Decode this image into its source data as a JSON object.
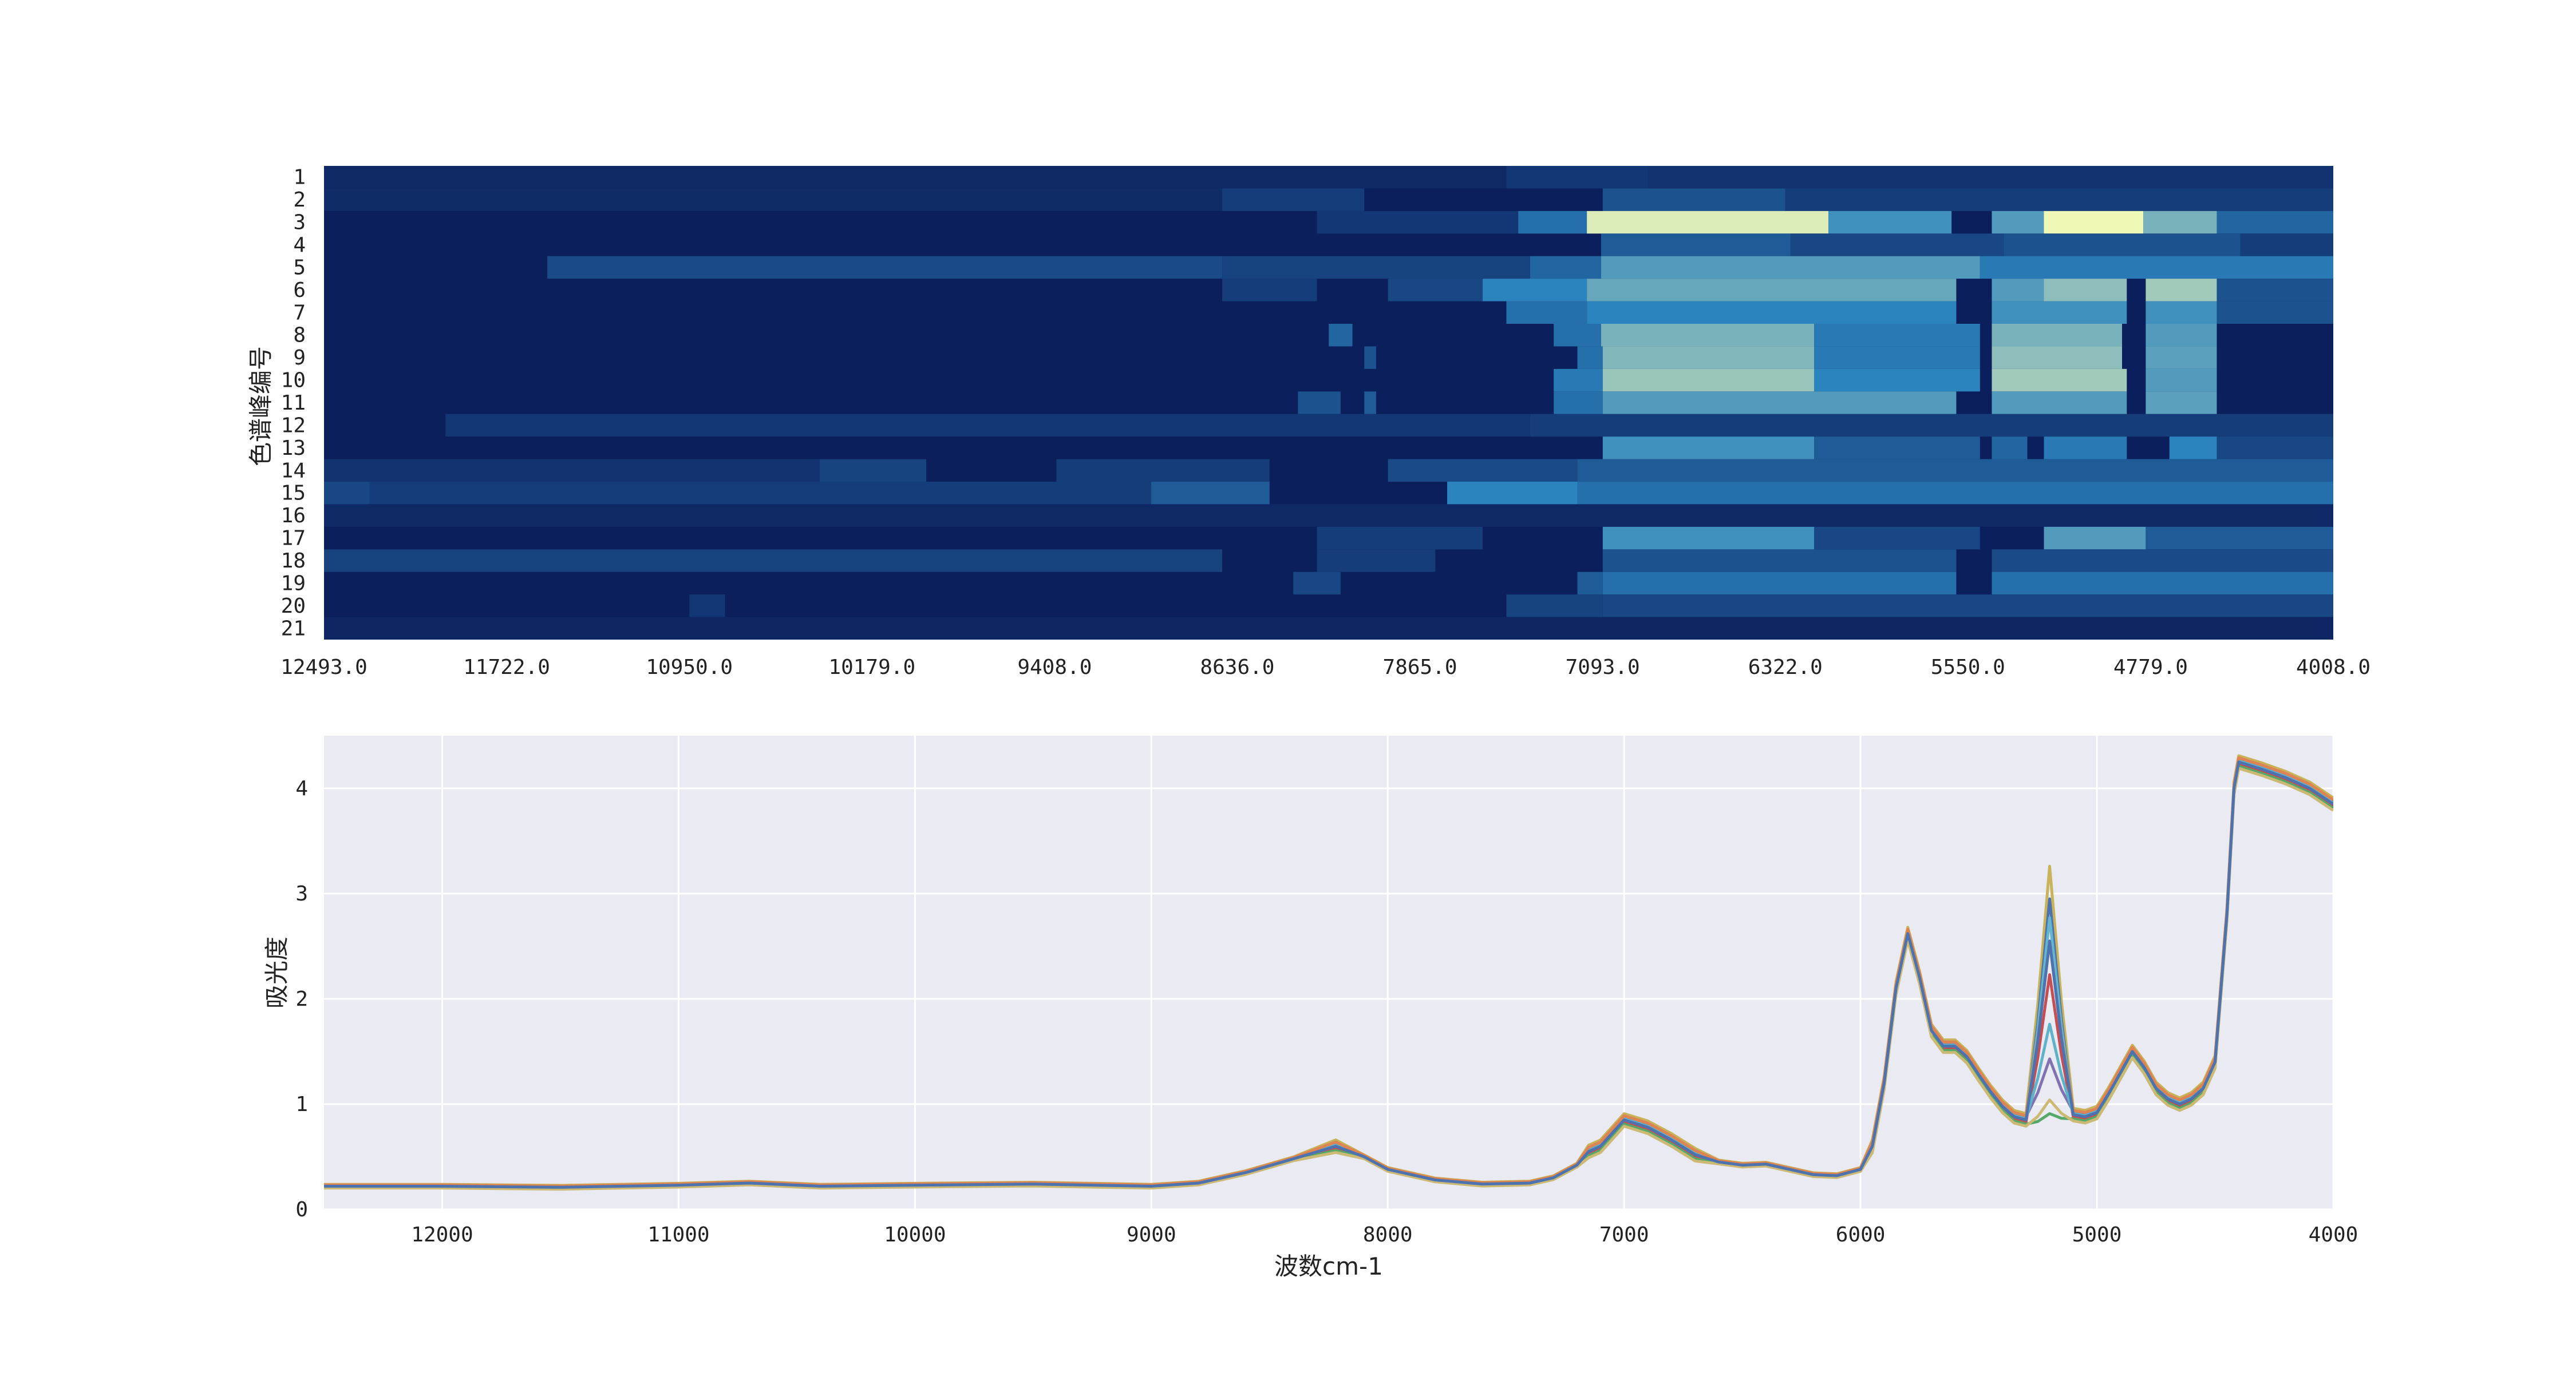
{
  "chart_data": [
    {
      "type": "heatmap",
      "title": "",
      "ylabel": "色谱峰编号",
      "xlabel": "",
      "rows": [
        "1",
        "2",
        "3",
        "4",
        "5",
        "6",
        "7",
        "8",
        "9",
        "10",
        "11",
        "12",
        "13",
        "14",
        "15",
        "16",
        "17",
        "18",
        "19",
        "20",
        "21"
      ],
      "x_tick_labels": [
        "12493.0",
        "11722.0",
        "10950.0",
        "10179.0",
        "9408.0",
        "8636.0",
        "7865.0",
        "7093.0",
        "6322.0",
        "5550.0",
        "4779.0",
        "4008.0"
      ],
      "x_range": [
        12493.0,
        4008.0
      ],
      "colormap": "YlGnBu",
      "colors": {
        "low": "#0b1f5c",
        "mid": "#2c84be",
        "high": "#f0f8b8"
      },
      "intensity_segments": [
        {
          "row": "1",
          "segments": [
            [
              12493,
              7500,
              0.05
            ],
            [
              7500,
              6900,
              0.12
            ],
            [
              6900,
              4008,
              0.1
            ]
          ]
        },
        {
          "row": "2",
          "segments": [
            [
              12493,
              8700,
              0.06
            ],
            [
              8700,
              8100,
              0.15
            ],
            [
              7093,
              6322,
              0.25
            ],
            [
              6322,
              4008,
              0.15
            ]
          ]
        },
        {
          "row": "3",
          "segments": [
            [
              8300,
              7450,
              0.12
            ],
            [
              7450,
              7160,
              0.4
            ],
            [
              7160,
              6140,
              0.95
            ],
            [
              6140,
              5620,
              0.55
            ],
            [
              5450,
              5230,
              0.6
            ],
            [
              5230,
              4810,
              1.0
            ],
            [
              4810,
              4500,
              0.7
            ],
            [
              4500,
              4008,
              0.35
            ]
          ]
        },
        {
          "row": "4",
          "segments": [
            [
              7100,
              6300,
              0.3
            ],
            [
              6300,
              5400,
              0.2
            ],
            [
              5400,
              4400,
              0.25
            ],
            [
              4400,
              4008,
              0.15
            ]
          ]
        },
        {
          "row": "5",
          "segments": [
            [
              11550,
              8700,
              0.22
            ],
            [
              8700,
              7400,
              0.18
            ],
            [
              7400,
              7100,
              0.35
            ],
            [
              7100,
              5500,
              0.6
            ],
            [
              5500,
              4008,
              0.45
            ]
          ]
        },
        {
          "row": "6",
          "segments": [
            [
              8700,
              8300,
              0.15
            ],
            [
              8000,
              7600,
              0.2
            ],
            [
              7600,
              7160,
              0.5
            ],
            [
              7160,
              5600,
              0.65
            ],
            [
              5450,
              5230,
              0.6
            ],
            [
              5230,
              4880,
              0.75
            ],
            [
              4800,
              4500,
              0.8
            ],
            [
              4500,
              4008,
              0.25
            ]
          ]
        },
        {
          "row": "7",
          "segments": [
            [
              7500,
              7160,
              0.4
            ],
            [
              7160,
              5600,
              0.5
            ],
            [
              5450,
              4880,
              0.55
            ],
            [
              4800,
              4500,
              0.55
            ],
            [
              4500,
              4008,
              0.25
            ]
          ]
        },
        {
          "row": "8",
          "segments": [
            [
              8250,
              8150,
              0.35
            ],
            [
              7300,
              7100,
              0.4
            ],
            [
              7100,
              6200,
              0.7
            ],
            [
              6200,
              5500,
              0.45
            ],
            [
              5450,
              4900,
              0.7
            ],
            [
              4800,
              4500,
              0.6
            ]
          ]
        },
        {
          "row": "9",
          "segments": [
            [
              8100,
              8050,
              0.25
            ],
            [
              7200,
              7093,
              0.4
            ],
            [
              7093,
              6200,
              0.72
            ],
            [
              6200,
              5500,
              0.45
            ],
            [
              5450,
              4900,
              0.75
            ],
            [
              4800,
              4500,
              0.62
            ]
          ]
        },
        {
          "row": "10",
          "segments": [
            [
              7300,
              7093,
              0.45
            ],
            [
              7093,
              6200,
              0.78
            ],
            [
              6200,
              5500,
              0.5
            ],
            [
              5450,
              4880,
              0.8
            ],
            [
              4800,
              4500,
              0.6
            ]
          ]
        },
        {
          "row": "11",
          "segments": [
            [
              8380,
              8200,
              0.25
            ],
            [
              8100,
              8050,
              0.3
            ],
            [
              7300,
              7093,
              0.4
            ],
            [
              7093,
              5600,
              0.6
            ],
            [
              5450,
              4880,
              0.6
            ],
            [
              4800,
              4500,
              0.62
            ]
          ]
        },
        {
          "row": "12",
          "segments": [
            [
              11980,
              7400,
              0.12
            ],
            [
              7400,
              4008,
              0.15
            ]
          ]
        },
        {
          "row": "13",
          "segments": [
            [
              7093,
              6200,
              0.55
            ],
            [
              6200,
              5500,
              0.3
            ],
            [
              5450,
              5300,
              0.35
            ],
            [
              5230,
              4880,
              0.45
            ],
            [
              4700,
              4500,
              0.5
            ],
            [
              4500,
              4008,
              0.2
            ]
          ]
        },
        {
          "row": "14",
          "segments": [
            [
              12493,
              10400,
              0.1
            ],
            [
              10400,
              9950,
              0.18
            ],
            [
              9400,
              8500,
              0.15
            ],
            [
              8000,
              7200,
              0.22
            ],
            [
              7200,
              4008,
              0.3
            ]
          ]
        },
        {
          "row": "15",
          "segments": [
            [
              12493,
              12300,
              0.2
            ],
            [
              12300,
              9000,
              0.15
            ],
            [
              9000,
              8500,
              0.3
            ],
            [
              7750,
              7200,
              0.5
            ],
            [
              7200,
              4008,
              0.4
            ]
          ]
        },
        {
          "row": "16",
          "segments": [
            [
              12493,
              4008,
              0.05
            ]
          ]
        },
        {
          "row": "17",
          "segments": [
            [
              8300,
              7600,
              0.15
            ],
            [
              7093,
              6200,
              0.55
            ],
            [
              6200,
              5500,
              0.2
            ],
            [
              5230,
              4800,
              0.6
            ],
            [
              4800,
              4008,
              0.3
            ]
          ]
        },
        {
          "row": "18",
          "segments": [
            [
              12493,
              8700,
              0.18
            ],
            [
              8300,
              7800,
              0.15
            ],
            [
              7093,
              5600,
              0.25
            ],
            [
              5450,
              4008,
              0.22
            ]
          ]
        },
        {
          "row": "19",
          "segments": [
            [
              8400,
              8200,
              0.2
            ],
            [
              7200,
              7093,
              0.3
            ],
            [
              7093,
              5600,
              0.4
            ],
            [
              5450,
              4008,
              0.4
            ]
          ]
        },
        {
          "row": "20",
          "segments": [
            [
              10950,
              10800,
              0.12
            ],
            [
              7500,
              7093,
              0.18
            ],
            [
              7093,
              4008,
              0.2
            ]
          ]
        },
        {
          "row": "21",
          "segments": [
            [
              12493,
              4008,
              0.04
            ]
          ]
        }
      ]
    },
    {
      "type": "line",
      "title": "",
      "xlabel": "波数cm-1",
      "ylabel": "吸光度",
      "xlim": [
        12500,
        4000
      ],
      "ylim": [
        0,
        4.5
      ],
      "x_ticks": [
        12000,
        11000,
        10000,
        9000,
        8000,
        7000,
        6000,
        5000,
        4000
      ],
      "y_ticks": [
        0,
        1,
        2,
        3,
        4
      ],
      "grid": true,
      "background": "#eaeaf2",
      "base_curve": {
        "x": [
          12500,
          12000,
          11500,
          11000,
          10700,
          10400,
          10000,
          9500,
          9000,
          8800,
          8600,
          8400,
          8220,
          8100,
          8000,
          7800,
          7600,
          7400,
          7300,
          7200,
          7150,
          7100,
          7000,
          6900,
          6800,
          6700,
          6600,
          6500,
          6400,
          6300,
          6200,
          6100,
          6000,
          5950,
          5900,
          5850,
          5800,
          5750,
          5700,
          5650,
          5600,
          5550,
          5500,
          5450,
          5400,
          5350,
          5300,
          5250,
          5200,
          5150,
          5100,
          5050,
          5000,
          4950,
          4900,
          4850,
          4800,
          4750,
          4700,
          4650,
          4600,
          4550,
          4500,
          4450,
          4420,
          4400,
          4300,
          4200,
          4100,
          4000
        ],
        "y": [
          0.22,
          0.22,
          0.21,
          0.23,
          0.25,
          0.22,
          0.23,
          0.24,
          0.22,
          0.25,
          0.35,
          0.48,
          0.6,
          0.5,
          0.38,
          0.28,
          0.24,
          0.25,
          0.3,
          0.42,
          0.55,
          0.6,
          0.85,
          0.78,
          0.66,
          0.52,
          0.45,
          0.42,
          0.43,
          0.38,
          0.33,
          0.32,
          0.38,
          0.6,
          1.2,
          2.1,
          2.62,
          2.2,
          1.7,
          1.55,
          1.55,
          1.45,
          1.28,
          1.12,
          0.98,
          0.88,
          0.85,
          0.92,
          1.05,
          0.95,
          0.9,
          0.88,
          0.92,
          1.1,
          1.3,
          1.5,
          1.35,
          1.15,
          1.05,
          1.0,
          1.05,
          1.15,
          1.4,
          2.8,
          4.0,
          4.25,
          4.18,
          4.1,
          4.0,
          3.85
        ]
      },
      "peak_5190": {
        "x": [
          5300,
          5250,
          5200,
          5150,
          5100
        ],
        "shape": [
          0.0,
          0.45,
          1.0,
          0.45,
          0.0
        ]
      },
      "series": [
        {
          "color": "#c8b35a",
          "offset": 0.06,
          "peak_5190_height": 3.2
        },
        {
          "color": "#4c72b0",
          "offset": 0.0,
          "peak_5190_height": 2.95
        },
        {
          "color": "#64b5cd",
          "offset": 0.02,
          "peak_5190_height": 2.75
        },
        {
          "color": "#c44e52",
          "offset": -0.02,
          "peak_5190_height": 2.25
        },
        {
          "color": "#55a868",
          "offset": -0.04,
          "peak_5190_height": 0.95
        },
        {
          "color": "#8172b2",
          "offset": 0.03,
          "peak_5190_height": 1.4
        },
        {
          "color": "#ccb974",
          "offset": -0.06,
          "peak_5190_height": 1.1
        },
        {
          "color": "#5fb3c9",
          "offset": 0.01,
          "peak_5190_height": 1.75
        },
        {
          "color": "#dd8452",
          "offset": 0.04,
          "peak_5190_height": 2.5
        },
        {
          "color": "#4c72b0",
          "offset": 0.0,
          "peak_5190_height": 2.55
        }
      ]
    }
  ]
}
